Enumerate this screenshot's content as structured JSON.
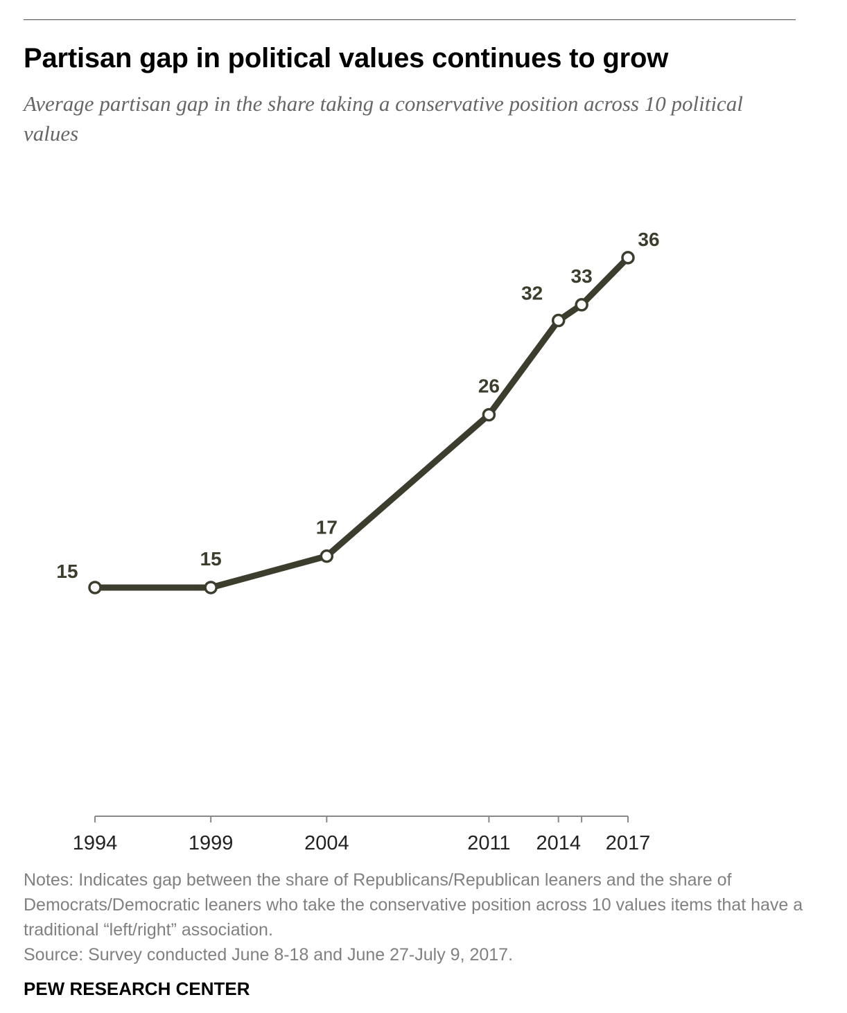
{
  "header": {
    "title": "Partisan gap in political values continues to grow",
    "subtitle": "Average partisan gap in the share taking a conservative position across 10 political values"
  },
  "footer": {
    "notes": "Notes: Indicates gap between the share of Republicans/Republican leaners and the share of Democrats/Democratic leaners who take the conservative position across 10 values items that have a traditional “left/right” association.",
    "source": "Source: Survey conducted June 8-18 and June 27-July 9, 2017.",
    "brand": "PEW RESEARCH CENTER"
  },
  "chart_data": {
    "type": "line",
    "title": "Partisan gap in political values continues to grow",
    "subtitle": "Average partisan gap in the share taking a conservative position across 10 political values",
    "x": [
      1994,
      1999,
      2004,
      2011,
      2014,
      2015,
      2017
    ],
    "tick_labels": [
      "1994",
      "1999",
      "2004",
      "2011",
      "2014",
      "2017"
    ],
    "series": [
      {
        "values": [
          15,
          15,
          17,
          26,
          32,
          33,
          36
        ]
      }
    ],
    "data_labels": [
      "15",
      "15",
      "17",
      "26",
      "32",
      "33",
      "36"
    ],
    "xlim": [
      1994,
      2017
    ],
    "ylim": [
      0,
      42
    ],
    "xlabel": "",
    "ylabel": "",
    "grid": false,
    "y_axis_shown": false,
    "colors": {
      "line": "#3d3d2e",
      "marker_fill": "#ffffff",
      "axis": "#888888",
      "label": "#3d3d2e",
      "tick_label": "#222222"
    }
  }
}
